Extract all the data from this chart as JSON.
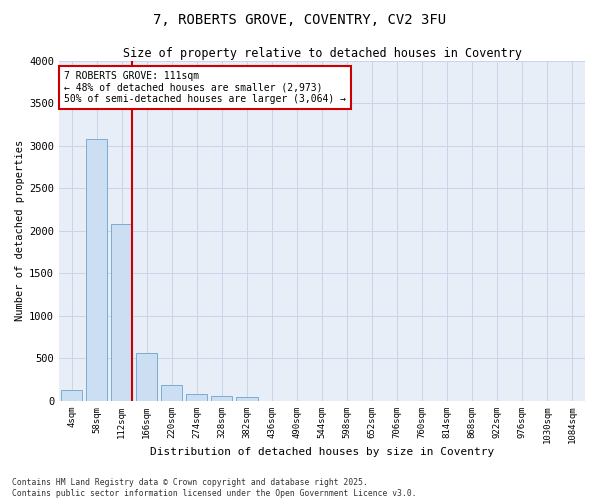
{
  "title": "7, ROBERTS GROVE, COVENTRY, CV2 3FU",
  "subtitle": "Size of property relative to detached houses in Coventry",
  "xlabel": "Distribution of detached houses by size in Coventry",
  "ylabel": "Number of detached properties",
  "bar_labels": [
    "4sqm",
    "58sqm",
    "112sqm",
    "166sqm",
    "220sqm",
    "274sqm",
    "328sqm",
    "382sqm",
    "436sqm",
    "490sqm",
    "544sqm",
    "598sqm",
    "652sqm",
    "706sqm",
    "760sqm",
    "814sqm",
    "868sqm",
    "922sqm",
    "976sqm",
    "1030sqm",
    "1084sqm"
  ],
  "bar_values": [
    130,
    3080,
    2080,
    560,
    190,
    75,
    55,
    45,
    0,
    0,
    0,
    0,
    0,
    0,
    0,
    0,
    0,
    0,
    0,
    0,
    0
  ],
  "bar_color": "#ccdff2",
  "bar_edge_color": "#7aadd4",
  "vline_color": "#cc0000",
  "ylim": [
    0,
    4000
  ],
  "yticks": [
    0,
    500,
    1000,
    1500,
    2000,
    2500,
    3000,
    3500,
    4000
  ],
  "annotation_text": "7 ROBERTS GROVE: 111sqm\n← 48% of detached houses are smaller (2,973)\n50% of semi-detached houses are larger (3,064) →",
  "annotation_box_color": "#cc0000",
  "footnote": "Contains HM Land Registry data © Crown copyright and database right 2025.\nContains public sector information licensed under the Open Government Licence v3.0.",
  "grid_color": "#c8d4e8",
  "background_color": "#e8eef8",
  "vline_bar_index": 2
}
